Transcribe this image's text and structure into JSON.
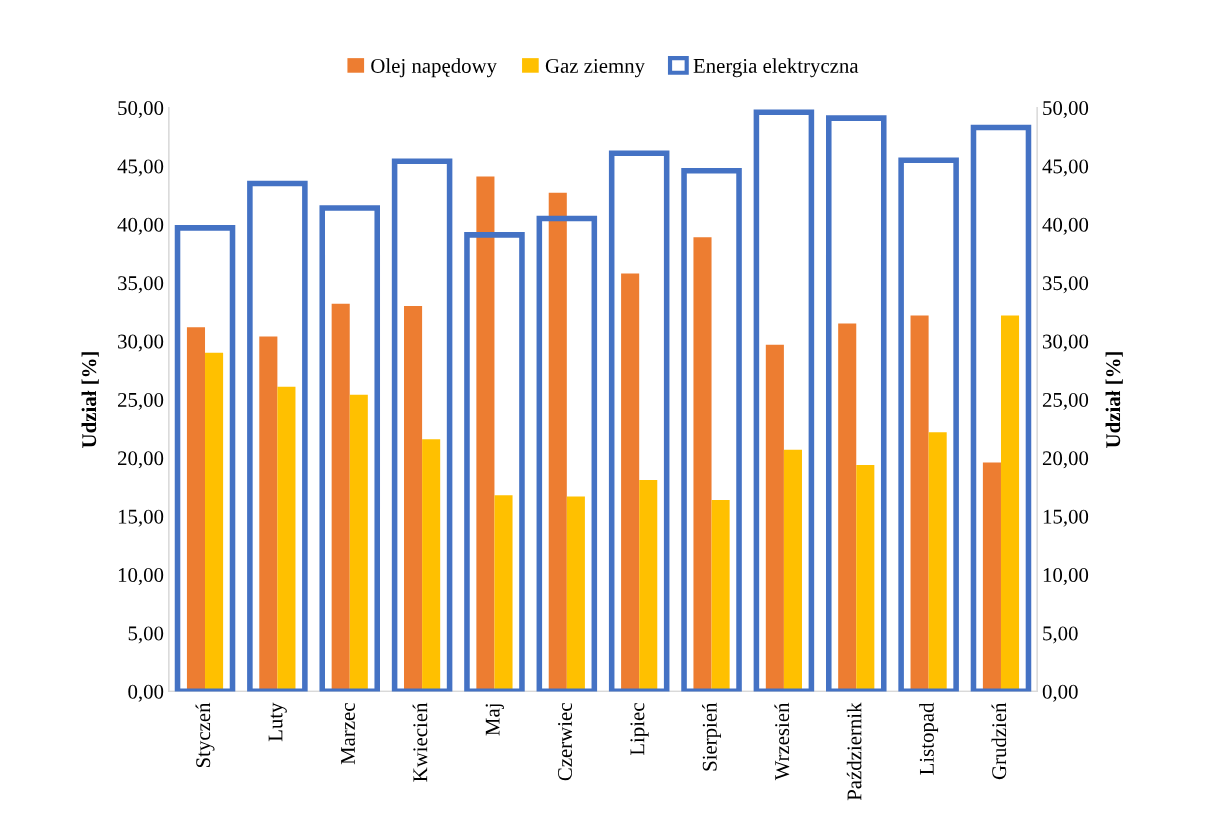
{
  "chart_data": {
    "type": "bar",
    "categories": [
      "Styczeń",
      "Luty",
      "Marzec",
      "Kwiecień",
      "Maj",
      "Czerwiec",
      "Lipiec",
      "Sierpień",
      "Wrzesień",
      "Październik",
      "Listopad",
      "Grudzień"
    ],
    "series": [
      {
        "name": "Olej napędowy",
        "color": "#ed7d31",
        "values": [
          31.2,
          30.4,
          33.2,
          33.0,
          44.1,
          42.7,
          35.8,
          38.9,
          29.7,
          31.5,
          32.2,
          19.6
        ]
      },
      {
        "name": "Gaz ziemny",
        "color": "#ffc000",
        "values": [
          29.0,
          26.1,
          25.4,
          21.6,
          16.8,
          16.7,
          18.1,
          16.4,
          20.7,
          19.4,
          22.2,
          32.2
        ]
      },
      {
        "name": "Energia elektryczna",
        "color": "#4472c4",
        "axis": "y2",
        "values": [
          39.7,
          43.5,
          41.4,
          45.4,
          39.1,
          40.5,
          46.1,
          44.6,
          49.6,
          49.1,
          45.5,
          48.3
        ]
      }
    ],
    "ylabel": "Udział [%]",
    "y2label": "Udział [%]",
    "ylim": [
      0,
      50
    ],
    "y2lim": [
      0,
      50
    ],
    "yticks": [
      {
        "value": 0,
        "label": "0,00"
      },
      {
        "value": 5,
        "label": "5,00"
      },
      {
        "value": 10,
        "label": "10,00"
      },
      {
        "value": 15,
        "label": "15,00"
      },
      {
        "value": 20,
        "label": "20,00"
      },
      {
        "value": 25,
        "label": "25,00"
      },
      {
        "value": 30,
        "label": "30,00"
      },
      {
        "value": 35,
        "label": "35,00"
      },
      {
        "value": 40,
        "label": "40,00"
      },
      {
        "value": 45,
        "label": "45,00"
      },
      {
        "value": 50,
        "label": "50,00"
      }
    ],
    "y2ticks": [
      {
        "value": 0,
        "label": "0,00"
      },
      {
        "value": 5,
        "label": "5,00"
      },
      {
        "value": 10,
        "label": "10,00"
      },
      {
        "value": 15,
        "label": "15,00"
      },
      {
        "value": 20,
        "label": "20,00"
      },
      {
        "value": 25,
        "label": "25,00"
      },
      {
        "value": 30,
        "label": "30,00"
      },
      {
        "value": 35,
        "label": "35,00"
      },
      {
        "value": 40,
        "label": "40,00"
      },
      {
        "value": 45,
        "label": "45,00"
      },
      {
        "value": 50,
        "label": "50,00"
      }
    ],
    "legend": "top",
    "grid": false
  }
}
